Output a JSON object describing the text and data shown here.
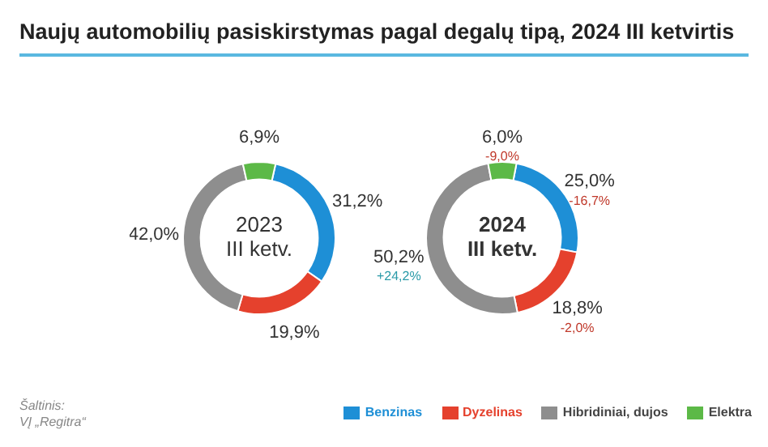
{
  "chart_data": [
    {
      "type": "donut",
      "title": "Naujų automobilių pasiskirstymas pagal degalų tipą, 2024 III ketvirtis",
      "subtitle": "2023\nIII ketv.",
      "categories": [
        "Benzinas",
        "Dyzelinas",
        "Hibridiniai, dujos",
        "Elektra"
      ],
      "values": [
        31.2,
        19.9,
        42.0,
        6.9
      ],
      "colors": [
        "#1e8fd6",
        "#e5412d",
        "#8e8e8e",
        "#5cb947"
      ],
      "value_labels": [
        "31,2%",
        "19,9%",
        "42,0%",
        "6,9%"
      ],
      "annotations": [
        "Šaltinis:\nVĮ „Regitra“"
      ],
      "legend": "bottom right"
    },
    {
      "type": "donut",
      "subtitle": "2024\nIII ketv.",
      "categories": [
        null,
        null,
        null,
        null
      ],
      "values": [
        25.0,
        18.8,
        50.2,
        6.0
      ],
      "colors": [
        "#1e8fd6",
        "#e5412d",
        "#8e8e8e",
        "#5cb947"
      ],
      "value_labels": [
        "25,0%",
        "18,8%",
        "50,2%",
        "6,0%"
      ],
      "annotations": [
        "-16,7%",
        "-2,0%",
        "+24,2%",
        "-9,0%"
      ]
    }
  ]
}
